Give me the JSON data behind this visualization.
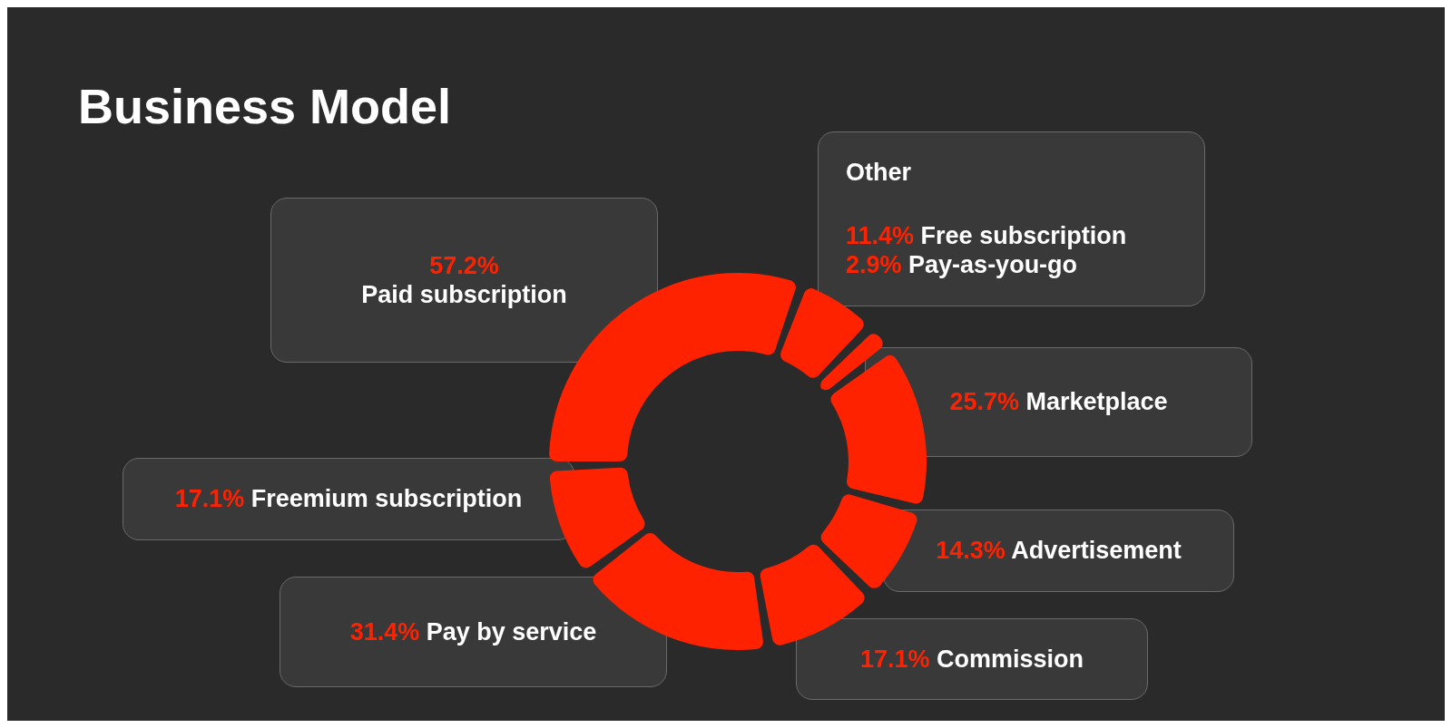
{
  "chart_data": {
    "type": "donut",
    "title": "Business Model",
    "categories": [
      "Paid subscription",
      "Free subscription",
      "Pay-as-you-go",
      "Marketplace",
      "Advertisement",
      "Commission",
      "Pay by service",
      "Freemium subscription"
    ],
    "values": [
      57.2,
      11.4,
      2.9,
      25.7,
      14.3,
      17.1,
      31.4,
      17.1
    ],
    "value_labels": [
      "57.2%",
      "11.4%",
      "2.9%",
      "25.7%",
      "14.3%",
      "17.1%",
      "31.4%",
      "17.1%"
    ],
    "colors": [
      "#ff2200",
      "#ff2200",
      "#ff2200",
      "#ff2200",
      "#ff2200",
      "#ff2200",
      "#ff2200",
      "#ff2200"
    ],
    "annotations": [
      "Other"
    ]
  }
}
